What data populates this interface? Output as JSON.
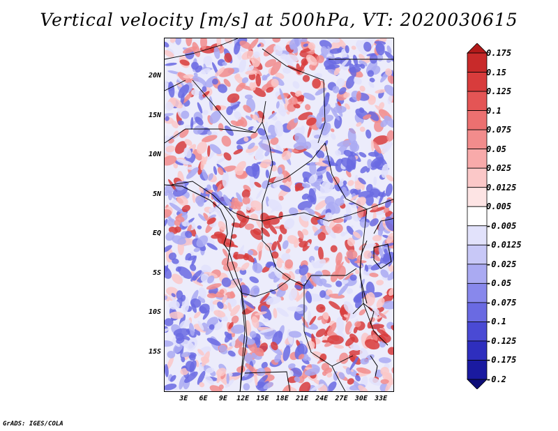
{
  "title": "Vertical velocity [m/s] at 500hPa, VT: 2020030615",
  "credit": "GrADS: IGES/COLA",
  "lat_labels": [
    "20N",
    "15N",
    "10N",
    "5N",
    "EQ",
    "5S",
    "10S",
    "15S"
  ],
  "lat_values": [
    20,
    15,
    10,
    5,
    0,
    -5,
    -10,
    -15
  ],
  "lon_labels": [
    "3E",
    "6E",
    "9E",
    "12E",
    "15E",
    "18E",
    "21E",
    "24E",
    "27E",
    "30E",
    "33E"
  ],
  "lon_values": [
    3,
    6,
    9,
    12,
    15,
    18,
    21,
    24,
    27,
    30,
    33
  ],
  "map_extent": {
    "lon_min": 0,
    "lon_max": 35,
    "lat_min": -20,
    "lat_max": 25
  },
  "colorbar": {
    "labels": [
      "0.175",
      "0.15",
      "0.125",
      "0.1",
      "0.075",
      "0.05",
      "0.025",
      "0.0125",
      "0.005",
      "-0.005",
      "-0.0125",
      "-0.025",
      "-0.05",
      "-0.075",
      "-0.1",
      "-0.125",
      "-0.175",
      "-0.2"
    ],
    "colors": [
      "#b21a1a",
      "#c82a2a",
      "#d83c3c",
      "#e45555",
      "#ec7070",
      "#f28c8c",
      "#f8aaaa",
      "#fbc8c8",
      "#fde4e4",
      "#ffffff",
      "#e2e2fb",
      "#c8c8f7",
      "#aaaaf2",
      "#8888ec",
      "#6a6ae2",
      "#4a4ad4",
      "#2e2ebe",
      "#1a1aa0",
      "#0e0e78"
    ]
  },
  "field_colors": {
    "strong_pos": "#d83c3c",
    "pos": "#f28c8c",
    "weak_pos": "#fbc8c8",
    "weak_neg": "#e2e2fb",
    "neg": "#aaaaf2",
    "strong_neg": "#6a6ae2"
  }
}
